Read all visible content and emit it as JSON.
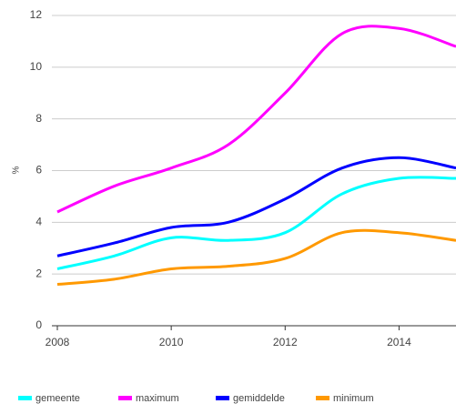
{
  "chart_data": {
    "type": "line",
    "y_label": "%",
    "x": [
      2008,
      2009,
      2010,
      2011,
      2012,
      2013,
      2014,
      2015
    ],
    "xlim": [
      2008,
      2015
    ],
    "xticks": [
      2008,
      2010,
      2012,
      2014
    ],
    "ylim": [
      0,
      12
    ],
    "yticks": [
      0,
      2,
      4,
      6,
      8,
      10,
      12
    ],
    "grid": true,
    "series": [
      {
        "name": "gemeente",
        "color": "#00ffff",
        "values": [
          2.2,
          2.7,
          3.4,
          3.3,
          3.6,
          5.1,
          5.7,
          5.7
        ]
      },
      {
        "name": "maximum",
        "color": "#ff00ff",
        "values": [
          4.4,
          5.4,
          6.1,
          7.0,
          9.0,
          11.3,
          11.5,
          10.8
        ]
      },
      {
        "name": "gemiddelde",
        "color": "#0000ff",
        "values": [
          2.7,
          3.2,
          3.8,
          4.0,
          4.9,
          6.1,
          6.5,
          6.1
        ]
      },
      {
        "name": "minimum",
        "color": "#ff9900",
        "values": [
          1.6,
          1.8,
          2.2,
          2.3,
          2.6,
          3.6,
          3.6,
          3.3
        ]
      }
    ]
  }
}
